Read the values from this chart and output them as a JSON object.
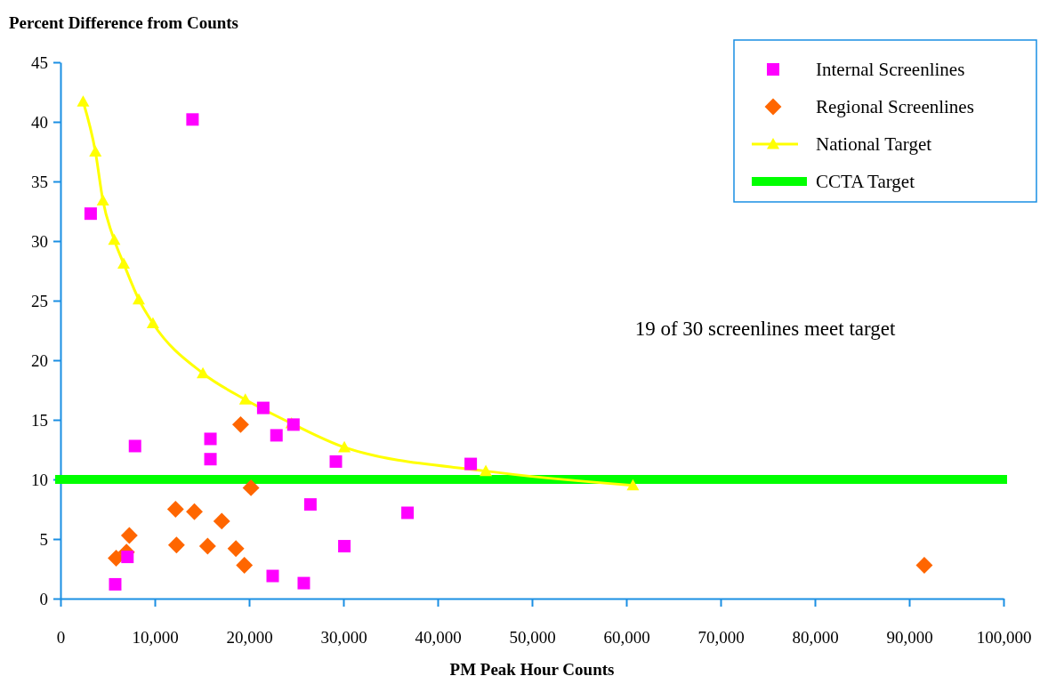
{
  "chart_data": {
    "type": "scatter",
    "xlabel": "PM Peak Hour Counts",
    "ylabel": "Percent Difference from Counts",
    "xlim": [
      0,
      100000
    ],
    "ylim": [
      0,
      45
    ],
    "xticks": [
      0,
      {
        "value": 10000,
        "label": "10,000"
      },
      {
        "value": 20000,
        "label": "20,000"
      },
      {
        "value": 30000,
        "label": "30,000"
      },
      {
        "value": 40000,
        "label": "40,000"
      },
      {
        "value": 50000,
        "label": "50,000"
      },
      {
        "value": 60000,
        "label": "60,000"
      },
      {
        "value": 70000,
        "label": "70,000"
      },
      {
        "value": 80000,
        "label": "80,000"
      },
      {
        "value": 90000,
        "label": "90,000"
      },
      {
        "value": 100000,
        "label": "100,000"
      }
    ],
    "yticks": [
      0,
      5,
      10,
      15,
      20,
      25,
      30,
      35,
      40,
      45
    ],
    "legend": "top right",
    "grid": false,
    "series": [
      {
        "name": "Internal Screenlines",
        "type": "scatter",
        "marker": "square",
        "color": "#ff00ff",
        "x": [
          3200,
          14000,
          7900,
          15900,
          15900,
          21500,
          22900,
          24700,
          29200,
          43500,
          26500,
          36800,
          30100,
          22500,
          25800,
          5800,
          7100
        ],
        "values": [
          32.3,
          40.2,
          12.8,
          13.4,
          11.7,
          16.0,
          13.7,
          14.6,
          11.5,
          11.3,
          7.9,
          7.2,
          4.4,
          1.9,
          1.3,
          1.2,
          3.5
        ]
      },
      {
        "name": "Regional Screenlines",
        "type": "scatter",
        "marker": "diamond",
        "color": "#ff6600",
        "x": [
          5900,
          7300,
          7000,
          12200,
          12300,
          14200,
          15600,
          17100,
          18600,
          19100,
          19500,
          20200,
          91600
        ],
        "values": [
          3.4,
          5.3,
          3.9,
          7.5,
          4.5,
          7.3,
          4.4,
          6.5,
          4.2,
          14.6,
          2.8,
          9.3,
          2.8
        ]
      },
      {
        "name": "National Target",
        "type": "line",
        "marker": "triangle",
        "color": "#ffff00",
        "x": [
          2400,
          3700,
          4500,
          5700,
          6700,
          8300,
          9800,
          15100,
          19600,
          24500,
          30100,
          45100,
          60700
        ],
        "values": [
          41.7,
          37.5,
          33.4,
          30.1,
          28.1,
          25.1,
          23.1,
          18.9,
          16.7,
          14.7,
          12.7,
          10.7,
          9.5
        ]
      }
    ],
    "ref_lines": [
      {
        "axis": "y",
        "value": 10,
        "label": "CCTA Target",
        "color": "#00ff00"
      }
    ],
    "annotations": [
      "19 of 30 screenlines meet target"
    ]
  }
}
